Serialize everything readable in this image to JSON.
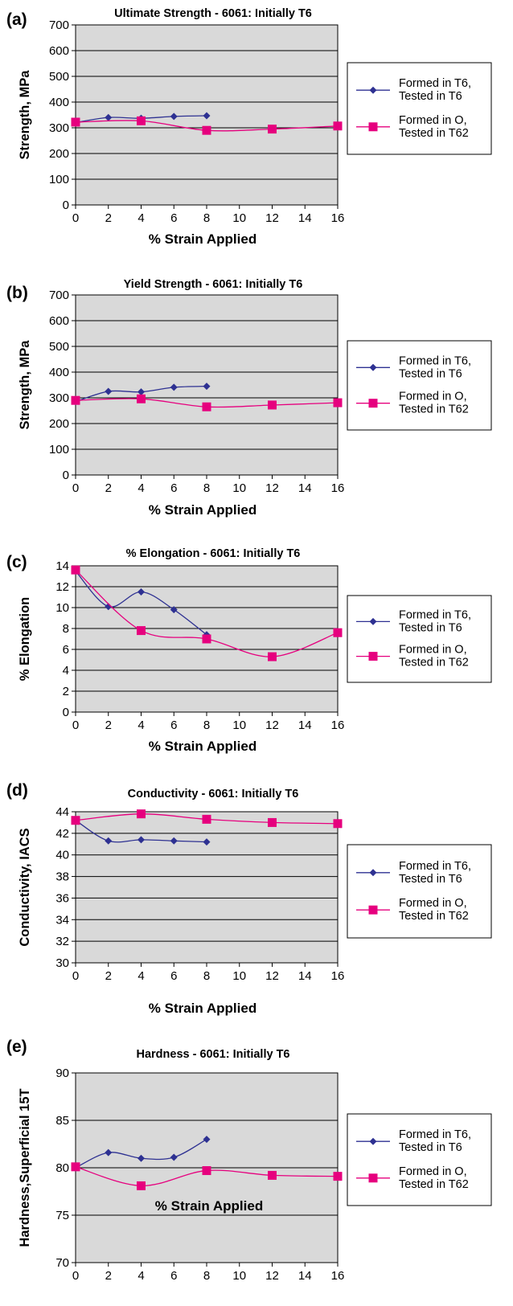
{
  "chart_data": [
    {
      "panel": "(a)",
      "type": "line",
      "title": "Ultimate Strength - 6061: Initially T6",
      "xlabel": "% Strain Applied",
      "ylabel": "Strength, MPa",
      "xlim": [
        0,
        16
      ],
      "ylim": [
        0,
        700
      ],
      "xticks": [
        "0",
        "2",
        "4",
        "6",
        "8",
        "10",
        "12",
        "14",
        "16"
      ],
      "yticks": [
        "0",
        "100",
        "200",
        "300",
        "400",
        "500",
        "600",
        "700"
      ],
      "grid": "horizontal",
      "legend": "right",
      "series": [
        {
          "name": "Formed in T6, Tested in T6",
          "color": "#2e3192",
          "marker": "diamond",
          "x": [
            0,
            2,
            4,
            6,
            8
          ],
          "y": [
            320,
            340,
            337,
            344,
            347
          ]
        },
        {
          "name": "Formed in O, Tested in T62",
          "color": "#e6007e",
          "marker": "square",
          "x": [
            0,
            4,
            8,
            12,
            16
          ],
          "y": [
            322,
            327,
            290,
            295,
            307
          ]
        }
      ]
    },
    {
      "panel": "(b)",
      "type": "line",
      "title": "Yield Strength - 6061: Initially T6",
      "xlabel": "% Strain Applied",
      "ylabel": "Strength, MPa",
      "xlim": [
        0,
        16
      ],
      "ylim": [
        0,
        700
      ],
      "xticks": [
        "0",
        "2",
        "4",
        "6",
        "8",
        "10",
        "12",
        "14",
        "16"
      ],
      "yticks": [
        "0",
        "100",
        "200",
        "300",
        "400",
        "500",
        "600",
        "700"
      ],
      "grid": "horizontal",
      "legend": "right",
      "series": [
        {
          "name": "Formed in T6, Tested in T6",
          "color": "#2e3192",
          "marker": "diamond",
          "x": [
            0,
            2,
            4,
            6,
            8
          ],
          "y": [
            285,
            325,
            323,
            341,
            345
          ]
        },
        {
          "name": "Formed in O, Tested in T62",
          "color": "#e6007e",
          "marker": "square",
          "x": [
            0,
            4,
            8,
            12,
            16
          ],
          "y": [
            290,
            296,
            265,
            272,
            281
          ]
        }
      ]
    },
    {
      "panel": "(c)",
      "type": "line",
      "title": "% Elongation - 6061: Initially T6",
      "xlabel": "% Strain Applied",
      "ylabel": "% Elongation",
      "xlim": [
        0,
        16
      ],
      "ylim": [
        0,
        14
      ],
      "xticks": [
        "0",
        "2",
        "4",
        "6",
        "8",
        "10",
        "12",
        "14",
        "16"
      ],
      "yticks": [
        "0",
        "2",
        "4",
        "6",
        "8",
        "10",
        "12",
        "14"
      ],
      "grid": "horizontal",
      "legend": "right",
      "series": [
        {
          "name": "Formed in T6, Tested in T6",
          "color": "#2e3192",
          "marker": "diamond",
          "x": [
            0,
            2,
            4,
            6,
            8
          ],
          "y": [
            13.5,
            10.1,
            11.5,
            9.8,
            7.4
          ]
        },
        {
          "name": "Formed in O, Tested in T62",
          "color": "#e6007e",
          "marker": "square",
          "x": [
            0,
            4,
            8,
            12,
            16
          ],
          "y": [
            13.6,
            7.8,
            7.0,
            5.3,
            7.6
          ]
        }
      ]
    },
    {
      "panel": "(d)",
      "type": "line",
      "title": "Conductivity - 6061: Initially T6",
      "xlabel": "% Strain Applied",
      "ylabel": "Conductivity, IACS",
      "xlim": [
        0,
        16
      ],
      "ylim": [
        30,
        44
      ],
      "xticks": [
        "0",
        "2",
        "4",
        "6",
        "8",
        "10",
        "12",
        "14",
        "16"
      ],
      "yticks": [
        "30",
        "32",
        "34",
        "36",
        "38",
        "40",
        "42",
        "44"
      ],
      "grid": "horizontal",
      "legend": "right",
      "series": [
        {
          "name": "Formed in T6, Tested in T6",
          "color": "#2e3192",
          "marker": "diamond",
          "x": [
            0,
            2,
            4,
            6,
            8
          ],
          "y": [
            43.2,
            41.3,
            41.4,
            41.3,
            41.2
          ]
        },
        {
          "name": "Formed in O, Tested in T62",
          "color": "#e6007e",
          "marker": "square",
          "x": [
            0,
            4,
            8,
            12,
            16
          ],
          "y": [
            43.2,
            43.8,
            43.3,
            43.0,
            42.9
          ]
        }
      ]
    },
    {
      "panel": "(e)",
      "type": "line",
      "title": "Hardness - 6061: Initially T6",
      "xlabel": "% Strain Applied",
      "ylabel": "Hardness,Superficial 15T",
      "xlim": [
        0,
        16
      ],
      "ylim": [
        70,
        90
      ],
      "xticks": [
        "0",
        "2",
        "4",
        "6",
        "8",
        "10",
        "12",
        "14",
        "16"
      ],
      "yticks": [
        "70",
        "75",
        "80",
        "85",
        "90"
      ],
      "grid": "horizontal",
      "legend": "right",
      "series": [
        {
          "name": "Formed in T6, Tested in T6",
          "color": "#2e3192",
          "marker": "diamond",
          "x": [
            0,
            2,
            4,
            6,
            8
          ],
          "y": [
            80.0,
            81.6,
            81.0,
            81.1,
            83.0
          ]
        },
        {
          "name": "Formed in O, Tested in T62",
          "color": "#e6007e",
          "marker": "square",
          "x": [
            0,
            4,
            8,
            12,
            16
          ],
          "y": [
            80.1,
            78.1,
            79.7,
            79.2,
            79.1
          ]
        }
      ]
    }
  ]
}
